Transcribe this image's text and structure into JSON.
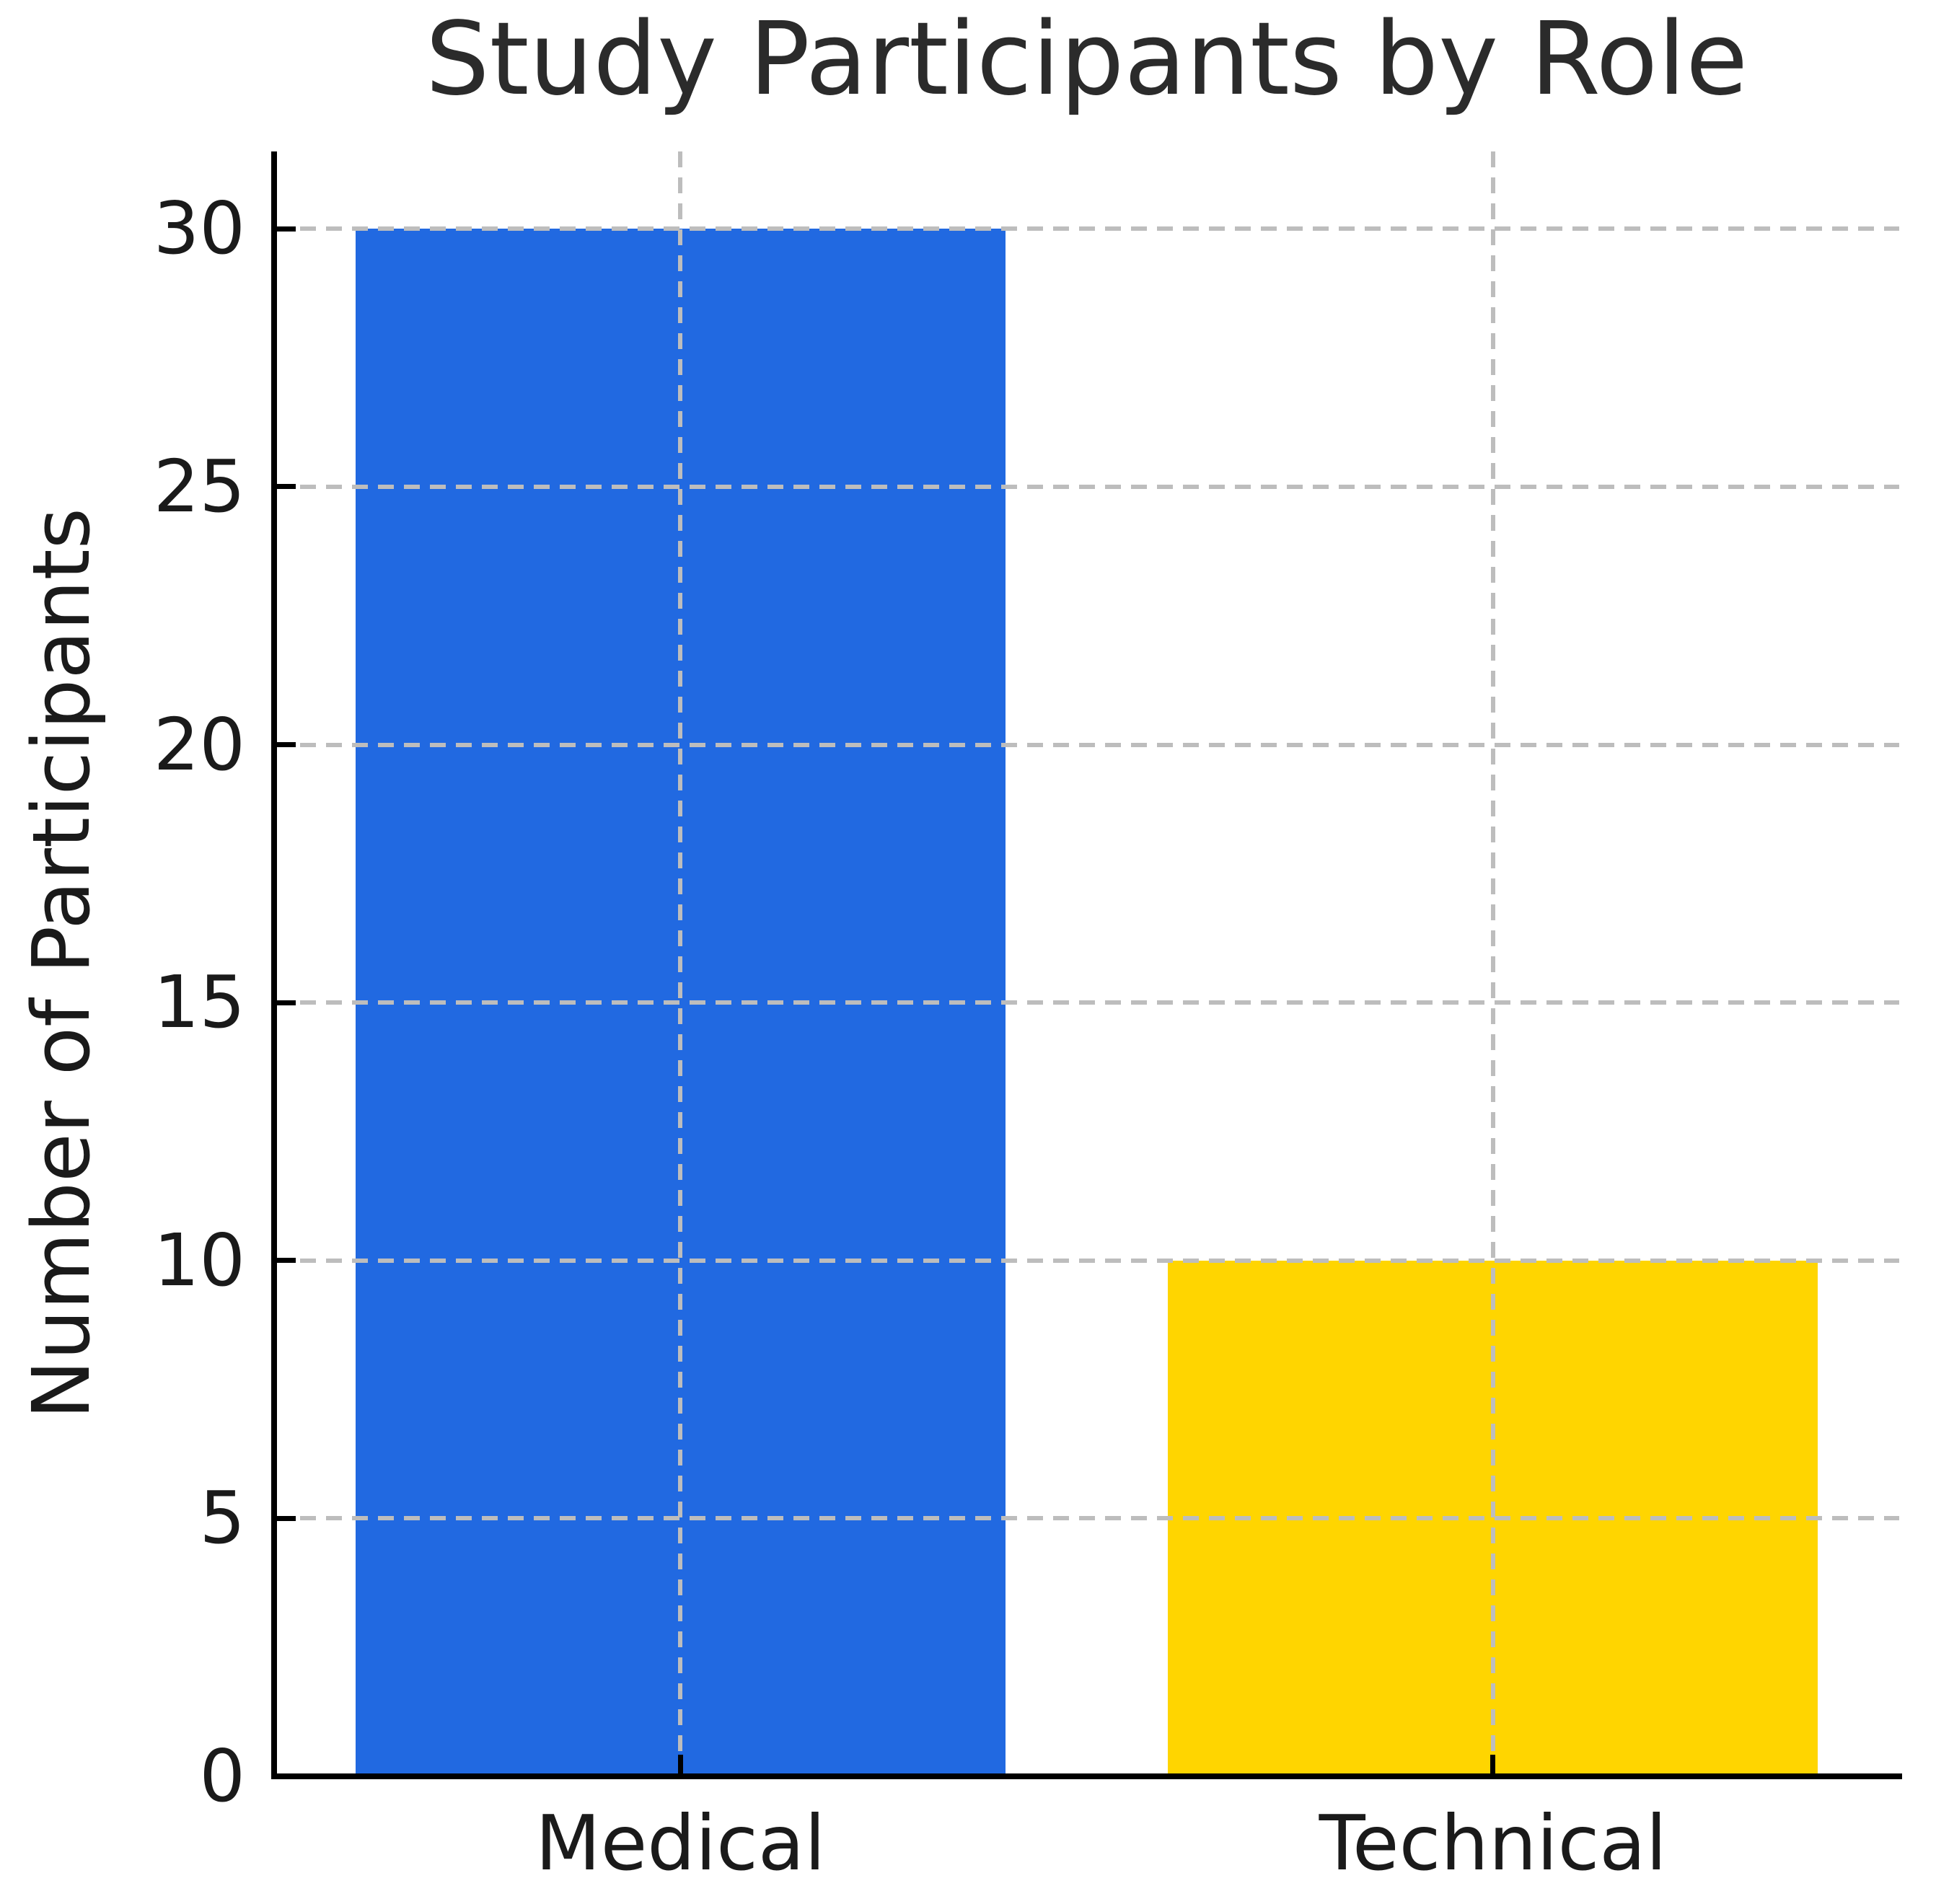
{
  "chart_data": {
    "type": "bar",
    "title": "Study Participants by Role",
    "xlabel": "",
    "ylabel": "Number of Participants",
    "categories": [
      "Medical",
      "Technical"
    ],
    "values": [
      30,
      10
    ],
    "bar_colors": [
      "#2169e1",
      "#ffd500"
    ],
    "yticks": [
      0,
      5,
      10,
      15,
      20,
      25,
      30
    ],
    "ylim": [
      0,
      31.5
    ],
    "bar_width_fraction": 0.8,
    "grid": "dashed",
    "grid_color": "#bdbdbd",
    "grid_above_bars": true,
    "tick_direction": "in",
    "axis_color": "#000000",
    "title_color": "#2b2b2b",
    "label_color": "#1a1a1a",
    "legend": null
  }
}
